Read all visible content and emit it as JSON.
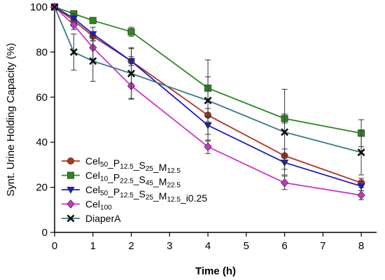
{
  "chart_data": {
    "type": "line",
    "xlabel": "Time (h)",
    "ylabel": "Synt. Urine Holding Capacity (%)",
    "xlim": [
      0,
      8.4
    ],
    "ylim": [
      0,
      100
    ],
    "xticks": [
      0,
      1,
      2,
      3,
      4,
      5,
      6,
      7,
      8
    ],
    "yticks": [
      0,
      20,
      40,
      60,
      80,
      100
    ],
    "grid": false,
    "legend_position": "bottom-left",
    "series": [
      {
        "name": "Cel50_P12.5_S25_M12.5",
        "label_parts": [
          [
            "Cel",
            "50"
          ],
          [
            "_P",
            "12.5"
          ],
          [
            "_S",
            "25"
          ],
          [
            "_M",
            "12.5"
          ]
        ],
        "marker": "circle",
        "color": "#b5321f",
        "line_color": "#b5321f",
        "x": [
          0,
          0.5,
          1,
          2,
          4,
          6,
          8
        ],
        "y": [
          100,
          94,
          87,
          76,
          52,
          34,
          22
        ],
        "err": [
          0,
          1.5,
          2,
          2,
          3,
          3,
          2
        ]
      },
      {
        "name": "Cel10_P22.5_S45_M22.5",
        "label_parts": [
          [
            "Cel",
            "10"
          ],
          [
            "_P",
            "22.5"
          ],
          [
            "_S",
            "45"
          ],
          [
            "_M",
            "22.5"
          ]
        ],
        "marker": "square",
        "color": "#2a8a1f",
        "line_color": "#2a8a1f",
        "x": [
          0,
          0.5,
          1,
          2,
          4,
          6,
          8
        ],
        "y": [
          100,
          97,
          94,
          89,
          64,
          50.5,
          44
        ],
        "err": [
          0,
          1,
          1,
          2,
          5,
          2,
          6
        ]
      },
      {
        "name": "Cel50_P12.5_S25_M12.5_i0.25",
        "label_parts": [
          [
            "Cel",
            "50"
          ],
          [
            "_P",
            "12.5"
          ],
          [
            "_S",
            "25"
          ],
          [
            "_M",
            "12.5"
          ],
          [
            "_i0.25",
            ""
          ]
        ],
        "marker": "triangle-down",
        "color": "#1a1acc",
        "line_color": "#1a1acc",
        "x": [
          0,
          0.5,
          1,
          2,
          4,
          6,
          8
        ],
        "y": [
          100,
          95,
          88,
          76,
          47.5,
          31,
          20.5
        ],
        "err": [
          0,
          2,
          3,
          6,
          4,
          3,
          2
        ]
      },
      {
        "name": "Cel100",
        "label_parts": [
          [
            "Cel",
            "100"
          ]
        ],
        "marker": "diamond",
        "color": "#cc33cc",
        "line_color": "#cc33cc",
        "x": [
          0,
          0.5,
          1,
          2,
          4,
          6,
          8
        ],
        "y": [
          100,
          92,
          82,
          65,
          38,
          22,
          16.5
        ],
        "err": [
          0,
          2,
          5,
          6,
          3,
          3,
          2
        ]
      },
      {
        "name": "DiaperA",
        "label_parts": [
          [
            "DiaperA",
            ""
          ]
        ],
        "marker": "x",
        "color": "#111111",
        "line_color": "#3a7a8a",
        "x": [
          0,
          0.5,
          1,
          2,
          4,
          6,
          8
        ],
        "y": [
          100,
          80,
          76,
          70.5,
          58.5,
          44.5,
          35.5
        ],
        "err": [
          0,
          8,
          9,
          11,
          18,
          19,
          10
        ]
      }
    ]
  }
}
